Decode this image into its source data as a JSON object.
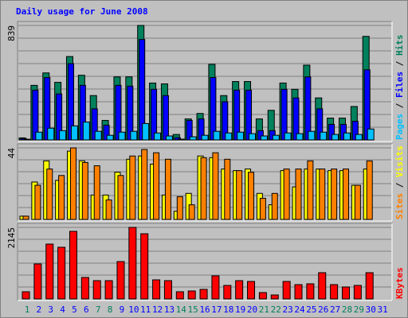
{
  "chart_data": [
    {
      "type": "bar",
      "title": "Daily usage for June 2008",
      "ylim": [
        0,
        839
      ],
      "yticks": [
        839
      ],
      "grid": true,
      "legend_separator": " / ",
      "series": [
        {
          "name": "Pages",
          "color": "#00c0ff",
          "values": [
            5,
            57,
            86,
            68,
            103,
            131,
            63,
            34,
            57,
            63,
            120,
            51,
            29,
            6,
            23,
            34,
            63,
            51,
            57,
            46,
            29,
            34,
            51,
            46,
            63,
            57,
            40,
            51,
            40,
            80,
            0
          ]
        },
        {
          "name": "Files",
          "color": "#0000ff",
          "values": [
            10,
            365,
            457,
            337,
            559,
            400,
            228,
            108,
            400,
            394,
            736,
            371,
            325,
            17,
            143,
            154,
            457,
            280,
            365,
            365,
            68,
            68,
            371,
            308,
            462,
            228,
            114,
            114,
            137,
            514,
            0
          ]
        },
        {
          "name": "Hits",
          "color": "#00805c",
          "values": [
            15,
            400,
            491,
            422,
            611,
            474,
            325,
            143,
            462,
            462,
            839,
            417,
            411,
            40,
            154,
            194,
            554,
            325,
            428,
            428,
            154,
            217,
            417,
            371,
            548,
            308,
            160,
            160,
            245,
            759,
            0
          ]
        }
      ]
    },
    {
      "type": "bar",
      "ylim": [
        0,
        44
      ],
      "yticks": [
        44
      ],
      "grid": true,
      "legend_separator": " / ",
      "series": [
        {
          "name": "Sites",
          "color": "#ff8000",
          "values": [
            2,
            21,
            31,
            27,
            44,
            35,
            33,
            12,
            27,
            39,
            43,
            41,
            37,
            14,
            9,
            38,
            41,
            37,
            30,
            29,
            13,
            16,
            31,
            31,
            36,
            31,
            31,
            31,
            21,
            36,
            0
          ]
        },
        {
          "name": "Visits",
          "color": "#ffff00",
          "values": [
            2,
            23,
            36,
            24,
            42,
            36,
            15,
            15,
            29,
            37,
            39,
            34,
            15,
            5,
            16,
            39,
            38,
            31,
            30,
            31,
            16,
            9,
            30,
            20,
            31,
            31,
            30,
            30,
            21,
            31,
            0
          ]
        }
      ]
    },
    {
      "type": "bar",
      "ylim": [
        0,
        2145
      ],
      "yticks": [
        2145
      ],
      "grid": true,
      "legend_separator": " / ",
      "categories": [
        "1",
        "2",
        "3",
        "4",
        "5",
        "6",
        "7",
        "8",
        "9",
        "10",
        "11",
        "12",
        "13",
        "14",
        "15",
        "16",
        "17",
        "18",
        "19",
        "20",
        "21",
        "22",
        "23",
        "24",
        "25",
        "26",
        "27",
        "28",
        "29",
        "30",
        "31"
      ],
      "category_colors": [
        "#00805c",
        "#0000ff",
        "#0000ff",
        "#0000ff",
        "#0000ff",
        "#0000ff",
        "#00805c",
        "#00805c",
        "#0000ff",
        "#0000ff",
        "#0000ff",
        "#0000ff",
        "#0000ff",
        "#00805c",
        "#00805c",
        "#0000ff",
        "#0000ff",
        "#0000ff",
        "#0000ff",
        "#0000ff",
        "#00805c",
        "#00805c",
        "#0000ff",
        "#0000ff",
        "#0000ff",
        "#0000ff",
        "#0000ff",
        "#00805c",
        "#00805c",
        "#0000ff",
        "#0000ff"
      ],
      "series": [
        {
          "name": "KBytes",
          "color": "#ff0000",
          "values": [
            215,
            1049,
            1644,
            1549,
            2026,
            644,
            548,
            548,
            1120,
            2145,
            1954,
            572,
            548,
            215,
            238,
            286,
            691,
            405,
            548,
            524,
            191,
            119,
            524,
            429,
            453,
            787,
            429,
            358,
            405,
            787,
            0
          ]
        }
      ]
    }
  ]
}
